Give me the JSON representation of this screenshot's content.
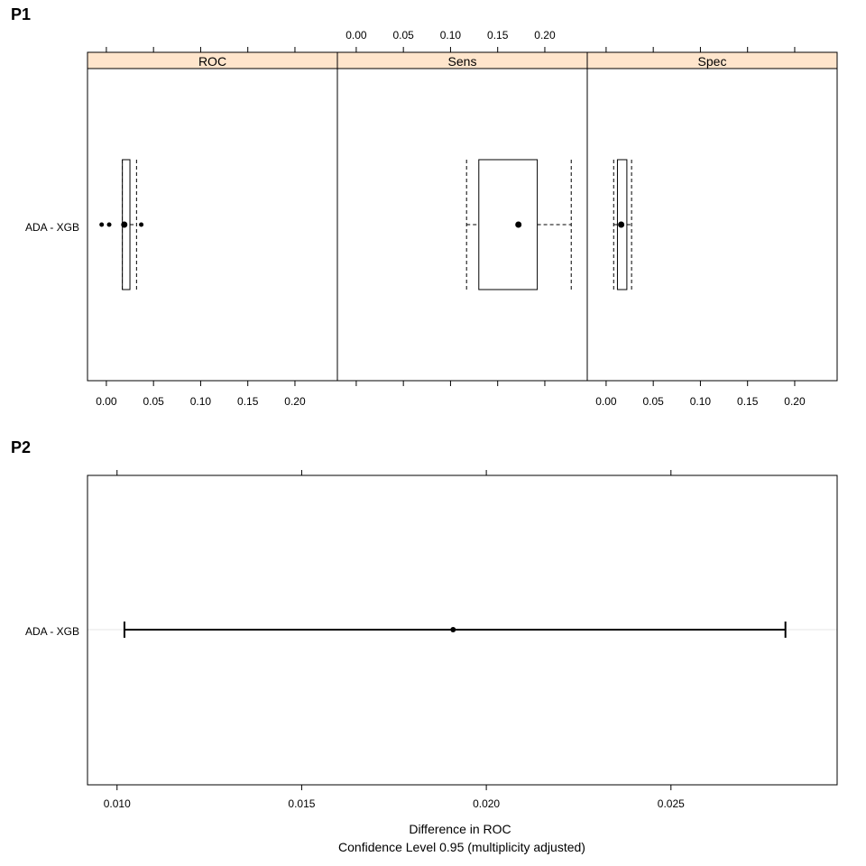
{
  "panels": {
    "p1_label": "P1",
    "p2_label": "P2"
  },
  "colors": {
    "strip_fill": "#ffe5cc",
    "frame": "#000000",
    "reference_line": "#e6e6e6"
  },
  "chart_data": [
    {
      "type": "box",
      "panel": "P1",
      "category": "ADA - XGB",
      "strips": [
        "ROC",
        "Sens",
        "Spec"
      ],
      "xticks": [
        "0.00",
        "0.05",
        "0.10",
        "0.15",
        "0.20"
      ],
      "xtick_values": [
        0,
        0.05,
        0.1,
        0.15,
        0.2
      ],
      "xlim": [
        -0.02,
        0.245
      ],
      "tick_label_sides": [
        "bottom",
        "top",
        "bottom"
      ],
      "boxes": [
        {
          "metric": "ROC",
          "whisker_low": 0.017,
          "q1": 0.017,
          "median": 0.019,
          "q3": 0.025,
          "whisker_high": 0.032,
          "outliers": [
            -0.005,
            0.003,
            0.037
          ]
        },
        {
          "metric": "Sens",
          "whisker_low": 0.117,
          "q1": 0.13,
          "median": 0.172,
          "q3": 0.192,
          "whisker_high": 0.228,
          "outliers": []
        },
        {
          "metric": "Spec",
          "whisker_low": 0.008,
          "q1": 0.012,
          "median": 0.016,
          "q3": 0.022,
          "whisker_high": 0.027,
          "outliers": []
        }
      ]
    },
    {
      "type": "interval",
      "panel": "P2",
      "category": "ADA - XGB",
      "estimate": 0.0191,
      "lower": 0.0102,
      "upper": 0.0281,
      "xlim": [
        0.0092,
        0.0295
      ],
      "xticks": [
        "0.010",
        "0.015",
        "0.020",
        "0.025"
      ],
      "xtick_values": [
        0.01,
        0.015,
        0.02,
        0.025
      ],
      "xlabel": "Difference in ROC",
      "subtitle": "Confidence Level 0.95  (multiplicity adjusted)"
    }
  ]
}
